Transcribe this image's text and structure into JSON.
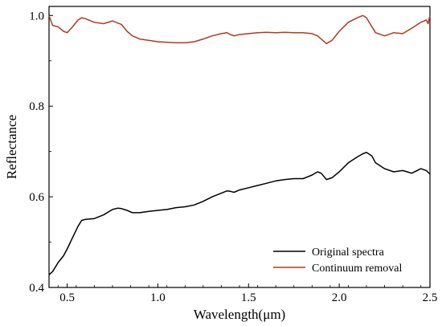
{
  "chart_data": {
    "type": "line",
    "title": "",
    "xlabel": "Wavelength(μm)",
    "ylabel": "Reflectance",
    "xlim": [
      0.4,
      2.5
    ],
    "ylim": [
      0.4,
      1.02
    ],
    "x_ticks": [
      0.5,
      1.0,
      1.5,
      2.0,
      2.5
    ],
    "x_tick_labels": [
      "0.5",
      "1.0",
      "1.5",
      "2.0",
      "2.5"
    ],
    "y_ticks": [
      0.4,
      0.6,
      0.8,
      1.0
    ],
    "y_tick_labels": [
      "0.4",
      "0.6",
      "0.8",
      "1.0"
    ],
    "grid": false,
    "legend_position": "bottom-right",
    "series": [
      {
        "name": "Original spectra",
        "color": "#000000",
        "x": [
          0.4,
          0.42,
          0.45,
          0.48,
          0.5,
          0.53,
          0.56,
          0.58,
          0.6,
          0.65,
          0.7,
          0.75,
          0.78,
          0.8,
          0.83,
          0.86,
          0.9,
          0.95,
          1.0,
          1.05,
          1.1,
          1.15,
          1.2,
          1.25,
          1.3,
          1.35,
          1.38,
          1.4,
          1.42,
          1.45,
          1.5,
          1.55,
          1.6,
          1.65,
          1.7,
          1.75,
          1.8,
          1.85,
          1.88,
          1.9,
          1.93,
          1.96,
          2.0,
          2.05,
          2.1,
          2.13,
          2.15,
          2.18,
          2.2,
          2.25,
          2.3,
          2.35,
          2.4,
          2.45,
          2.48,
          2.5
        ],
        "y": [
          0.428,
          0.435,
          0.455,
          0.47,
          0.485,
          0.51,
          0.535,
          0.548,
          0.55,
          0.552,
          0.56,
          0.572,
          0.575,
          0.574,
          0.57,
          0.565,
          0.565,
          0.568,
          0.57,
          0.572,
          0.576,
          0.578,
          0.582,
          0.59,
          0.6,
          0.608,
          0.613,
          0.612,
          0.61,
          0.615,
          0.62,
          0.625,
          0.63,
          0.635,
          0.638,
          0.64,
          0.64,
          0.648,
          0.655,
          0.652,
          0.638,
          0.642,
          0.655,
          0.675,
          0.688,
          0.695,
          0.698,
          0.69,
          0.675,
          0.662,
          0.655,
          0.658,
          0.652,
          0.662,
          0.658,
          0.65
        ]
      },
      {
        "name": "Continuum removal",
        "color": "#b03a1e",
        "x": [
          0.4,
          0.42,
          0.45,
          0.48,
          0.5,
          0.53,
          0.56,
          0.58,
          0.6,
          0.65,
          0.7,
          0.75,
          0.8,
          0.83,
          0.86,
          0.9,
          0.95,
          1.0,
          1.05,
          1.1,
          1.15,
          1.2,
          1.25,
          1.3,
          1.35,
          1.38,
          1.4,
          1.42,
          1.45,
          1.5,
          1.55,
          1.6,
          1.65,
          1.7,
          1.75,
          1.8,
          1.85,
          1.88,
          1.9,
          1.93,
          1.96,
          2.0,
          2.05,
          2.1,
          2.13,
          2.15,
          2.18,
          2.2,
          2.25,
          2.3,
          2.35,
          2.4,
          2.45,
          2.48,
          2.49,
          2.5
        ],
        "y": [
          1.0,
          0.978,
          0.975,
          0.965,
          0.962,
          0.975,
          0.99,
          0.995,
          0.993,
          0.985,
          0.982,
          0.988,
          0.98,
          0.965,
          0.955,
          0.948,
          0.945,
          0.942,
          0.941,
          0.94,
          0.94,
          0.942,
          0.948,
          0.955,
          0.96,
          0.962,
          0.958,
          0.955,
          0.958,
          0.96,
          0.962,
          0.963,
          0.962,
          0.963,
          0.962,
          0.962,
          0.96,
          0.955,
          0.948,
          0.938,
          0.945,
          0.965,
          0.985,
          0.995,
          1.0,
          0.995,
          0.975,
          0.962,
          0.955,
          0.962,
          0.96,
          0.972,
          0.985,
          0.99,
          0.982,
          1.0
        ]
      }
    ]
  }
}
